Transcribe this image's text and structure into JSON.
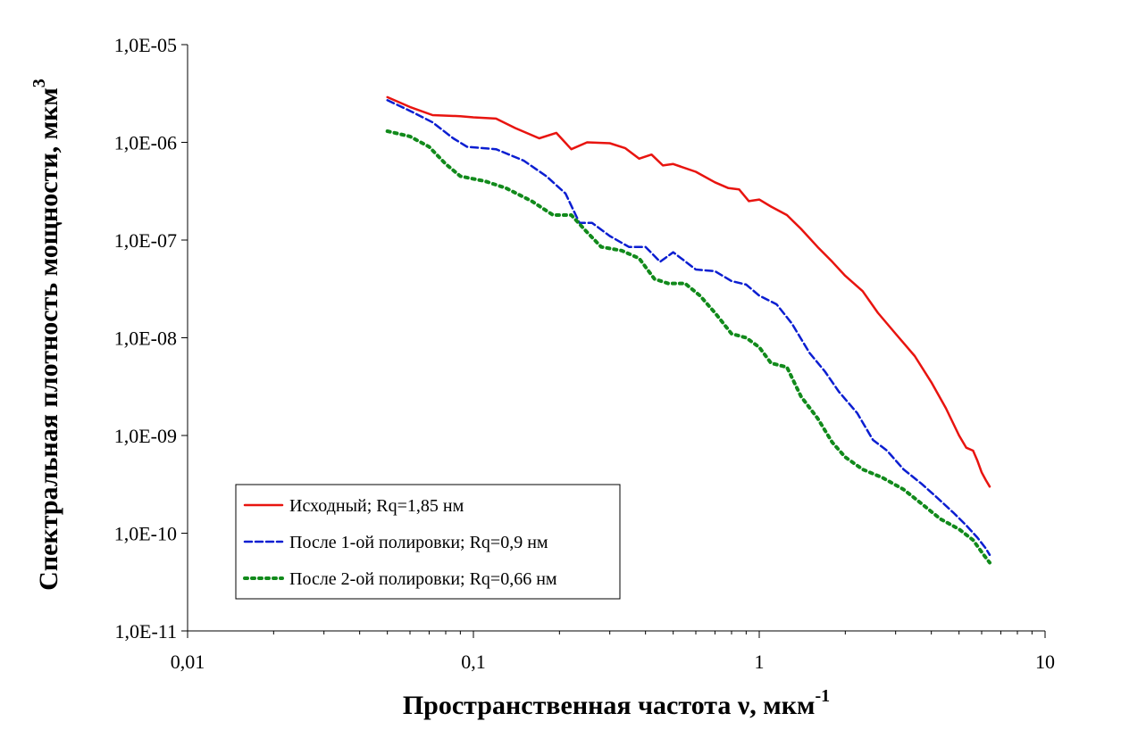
{
  "chart_data": {
    "type": "line",
    "title": "",
    "xlabel": "Пространственная частота ν, мкм",
    "xlabel_sup": "-1",
    "ylabel": "Спектральная плотность мощности, мкм",
    "ylabel_sup": "3",
    "x_scale": "log",
    "y_scale": "log",
    "xlim": [
      0.01,
      10
    ],
    "ylim": [
      1e-11,
      1e-05
    ],
    "x_ticks": [
      {
        "value": 0.01,
        "label": "0,01"
      },
      {
        "value": 0.1,
        "label": "0,1"
      },
      {
        "value": 1,
        "label": "1"
      },
      {
        "value": 10,
        "label": "10"
      }
    ],
    "y_ticks": [
      {
        "value": 1e-05,
        "label": "1,0E-05"
      },
      {
        "value": 1e-06,
        "label": "1,0E-06"
      },
      {
        "value": 1e-07,
        "label": "1,0E-07"
      },
      {
        "value": 1e-08,
        "label": "1,0E-08"
      },
      {
        "value": 1e-09,
        "label": "1,0E-09"
      },
      {
        "value": 1e-10,
        "label": "1,0E-10"
      },
      {
        "value": 1e-11,
        "label": "1,0E-11"
      }
    ],
    "grid": false,
    "legend_position": "bottom-left",
    "series": [
      {
        "name": "Исходный; Rq=1,85 нм",
        "color": "#e8140f",
        "style": "solid",
        "points": [
          [
            0.05,
            2.9e-06
          ],
          [
            0.06,
            2.3e-06
          ],
          [
            0.072,
            1.9e-06
          ],
          [
            0.09,
            1.85e-06
          ],
          [
            0.1,
            1.8e-06
          ],
          [
            0.12,
            1.75e-06
          ],
          [
            0.14,
            1.4e-06
          ],
          [
            0.17,
            1.1e-06
          ],
          [
            0.195,
            1.25e-06
          ],
          [
            0.22,
            8.5e-07
          ],
          [
            0.25,
            1e-06
          ],
          [
            0.3,
            9.8e-07
          ],
          [
            0.34,
            8.7e-07
          ],
          [
            0.38,
            6.8e-07
          ],
          [
            0.42,
            7.5e-07
          ],
          [
            0.46,
            5.8e-07
          ],
          [
            0.5,
            6e-07
          ],
          [
            0.6,
            5e-07
          ],
          [
            0.7,
            3.9e-07
          ],
          [
            0.78,
            3.4e-07
          ],
          [
            0.85,
            3.3e-07
          ],
          [
            0.92,
            2.5e-07
          ],
          [
            1.0,
            2.6e-07
          ],
          [
            1.1,
            2.2e-07
          ],
          [
            1.25,
            1.8e-07
          ],
          [
            1.4,
            1.3e-07
          ],
          [
            1.6,
            8.5e-08
          ],
          [
            1.8,
            6e-08
          ],
          [
            2.0,
            4.3e-08
          ],
          [
            2.3,
            3e-08
          ],
          [
            2.6,
            1.8e-08
          ],
          [
            3.0,
            1.1e-08
          ],
          [
            3.5,
            6.5e-09
          ],
          [
            4.0,
            3.5e-09
          ],
          [
            4.5,
            1.9e-09
          ],
          [
            5.0,
            1e-09
          ],
          [
            5.3,
            7.5e-10
          ],
          [
            5.6,
            7e-10
          ],
          [
            5.8,
            5.5e-10
          ],
          [
            6.0,
            4.2e-10
          ],
          [
            6.2,
            3.5e-10
          ],
          [
            6.4,
            3e-10
          ]
        ]
      },
      {
        "name": "После 1-ой полировки; Rq=0,9 нм",
        "color": "#0b1ed1",
        "style": "dashed",
        "points": [
          [
            0.05,
            2.7e-06
          ],
          [
            0.06,
            2.1e-06
          ],
          [
            0.072,
            1.6e-06
          ],
          [
            0.085,
            1.1e-06
          ],
          [
            0.095,
            9e-07
          ],
          [
            0.12,
            8.5e-07
          ],
          [
            0.15,
            6.5e-07
          ],
          [
            0.18,
            4.5e-07
          ],
          [
            0.21,
            3e-07
          ],
          [
            0.235,
            1.5e-07
          ],
          [
            0.26,
            1.5e-07
          ],
          [
            0.3,
            1.1e-07
          ],
          [
            0.35,
            8.5e-08
          ],
          [
            0.4,
            8.5e-08
          ],
          [
            0.45,
            6e-08
          ],
          [
            0.5,
            7.5e-08
          ],
          [
            0.6,
            5e-08
          ],
          [
            0.7,
            4.8e-08
          ],
          [
            0.8,
            3.8e-08
          ],
          [
            0.9,
            3.5e-08
          ],
          [
            1.0,
            2.7e-08
          ],
          [
            1.15,
            2.2e-08
          ],
          [
            1.3,
            1.4e-08
          ],
          [
            1.5,
            7e-09
          ],
          [
            1.7,
            4.5e-09
          ],
          [
            1.9,
            2.8e-09
          ],
          [
            2.2,
            1.7e-09
          ],
          [
            2.5,
            9e-10
          ],
          [
            2.8,
            7e-10
          ],
          [
            3.2,
            4.5e-10
          ],
          [
            3.7,
            3.2e-10
          ],
          [
            4.2,
            2.3e-10
          ],
          [
            4.8,
            1.6e-10
          ],
          [
            5.3,
            1.2e-10
          ],
          [
            5.8,
            9e-11
          ],
          [
            6.2,
            7e-11
          ],
          [
            6.4,
            6e-11
          ]
        ]
      },
      {
        "name": "После 2-ой полировки; Rq=0,66 нм",
        "color": "#118a1b",
        "style": "dotted",
        "points": [
          [
            0.05,
            1.3e-06
          ],
          [
            0.06,
            1.15e-06
          ],
          [
            0.07,
            9e-07
          ],
          [
            0.08,
            6e-07
          ],
          [
            0.09,
            4.5e-07
          ],
          [
            0.11,
            4e-07
          ],
          [
            0.13,
            3.4e-07
          ],
          [
            0.16,
            2.5e-07
          ],
          [
            0.19,
            1.8e-07
          ],
          [
            0.22,
            1.8e-07
          ],
          [
            0.25,
            1.2e-07
          ],
          [
            0.28,
            8.5e-08
          ],
          [
            0.33,
            7.8e-08
          ],
          [
            0.38,
            6.5e-08
          ],
          [
            0.43,
            4e-08
          ],
          [
            0.48,
            3.6e-08
          ],
          [
            0.55,
            3.6e-08
          ],
          [
            0.62,
            2.7e-08
          ],
          [
            0.7,
            1.8e-08
          ],
          [
            0.8,
            1.1e-08
          ],
          [
            0.9,
            1e-08
          ],
          [
            1.0,
            8e-09
          ],
          [
            1.1,
            5.5e-09
          ],
          [
            1.25,
            5e-09
          ],
          [
            1.4,
            2.5e-09
          ],
          [
            1.6,
            1.5e-09
          ],
          [
            1.8,
            8.5e-10
          ],
          [
            2.0,
            6e-10
          ],
          [
            2.3,
            4.5e-10
          ],
          [
            2.7,
            3.7e-10
          ],
          [
            3.2,
            2.8e-10
          ],
          [
            3.7,
            2e-10
          ],
          [
            4.3,
            1.4e-10
          ],
          [
            5.0,
            1.1e-10
          ],
          [
            5.6,
            8.5e-11
          ],
          [
            6.1,
            6e-11
          ],
          [
            6.4,
            5e-11
          ]
        ]
      }
    ]
  }
}
